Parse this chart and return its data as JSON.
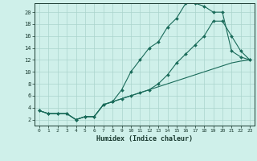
{
  "xlabel": "Humidex (Indice chaleur)",
  "bg_color": "#cff0ea",
  "line_color": "#1a6b5a",
  "grid_color": "#aad4cc",
  "xlim": [
    -0.5,
    23.5
  ],
  "ylim": [
    1.0,
    21.5
  ],
  "xticks": [
    0,
    1,
    2,
    3,
    4,
    5,
    6,
    7,
    8,
    9,
    10,
    11,
    12,
    13,
    14,
    15,
    16,
    17,
    18,
    19,
    20,
    21,
    22,
    23
  ],
  "yticks": [
    2,
    4,
    6,
    8,
    10,
    12,
    14,
    16,
    18,
    20
  ],
  "line1_x": [
    0,
    1,
    2,
    3,
    4,
    5,
    6,
    7,
    8,
    9,
    10,
    11,
    12,
    13,
    14,
    15,
    16,
    17,
    18,
    19,
    20,
    21,
    22,
    23
  ],
  "line1_y": [
    3.5,
    3.0,
    3.0,
    3.0,
    2.0,
    2.5,
    2.5,
    4.5,
    5.0,
    7.0,
    10.0,
    12.0,
    14.0,
    15.0,
    17.5,
    19.0,
    21.5,
    21.5,
    21.0,
    20.0,
    20.0,
    13.5,
    12.5,
    12.0
  ],
  "line2_x": [
    0,
    1,
    2,
    3,
    4,
    5,
    6,
    7,
    8,
    9,
    10,
    11,
    12,
    13,
    14,
    15,
    16,
    17,
    18,
    19,
    20,
    21,
    22,
    23
  ],
  "line2_y": [
    3.5,
    3.0,
    3.0,
    3.0,
    2.0,
    2.5,
    2.5,
    4.5,
    5.0,
    5.5,
    6.0,
    6.5,
    7.0,
    8.0,
    9.5,
    11.5,
    13.0,
    14.5,
    16.0,
    18.5,
    18.5,
    16.0,
    13.5,
    12.0
  ],
  "line3_x": [
    0,
    1,
    2,
    3,
    4,
    5,
    6,
    7,
    8,
    9,
    10,
    11,
    12,
    13,
    14,
    15,
    16,
    17,
    18,
    19,
    20,
    21,
    22,
    23
  ],
  "line3_y": [
    3.5,
    3.0,
    3.0,
    3.0,
    2.0,
    2.5,
    2.5,
    4.5,
    5.0,
    5.5,
    6.0,
    6.5,
    7.0,
    7.5,
    8.0,
    8.5,
    9.0,
    9.5,
    10.0,
    10.5,
    11.0,
    11.5,
    11.8,
    12.0
  ]
}
